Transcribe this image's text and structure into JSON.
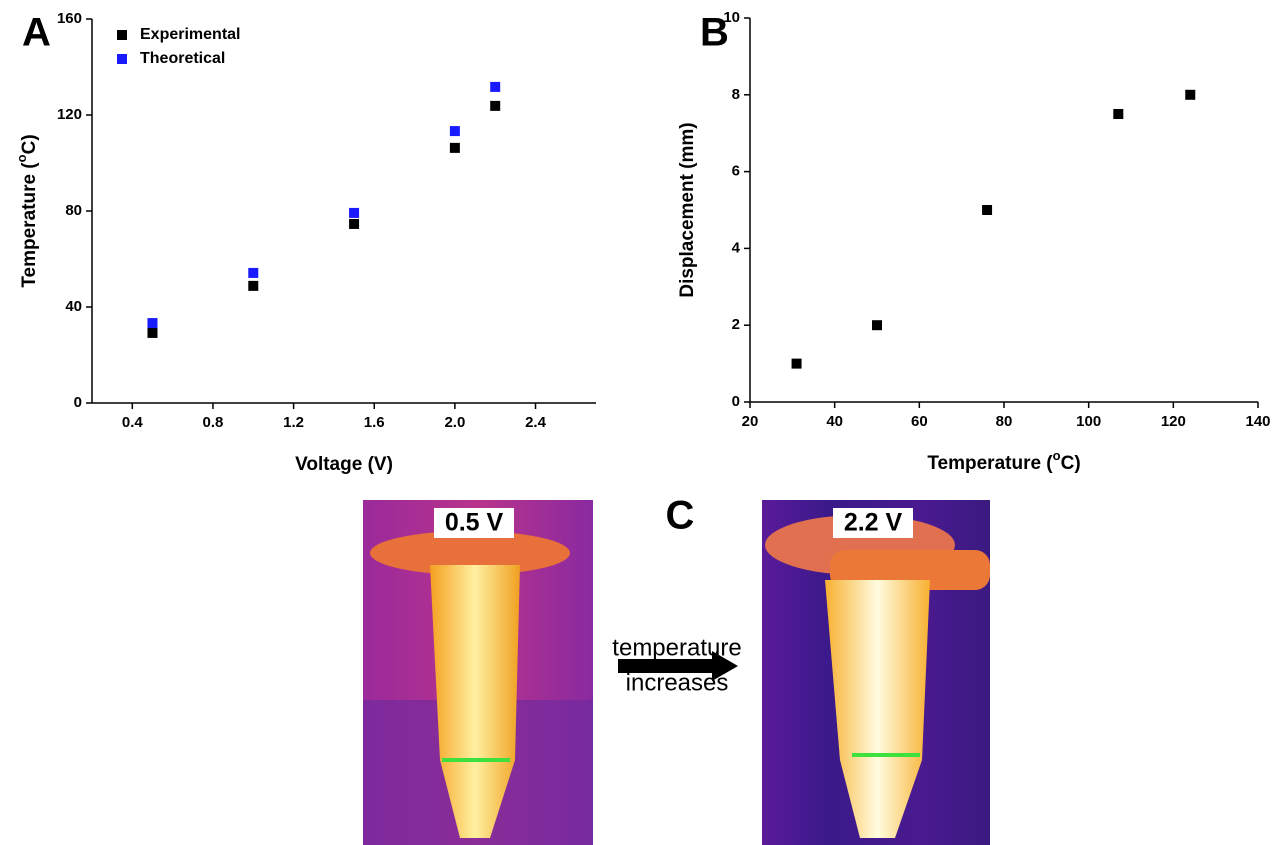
{
  "chart_data": [
    {
      "type": "scatter",
      "panel": "A",
      "xlabel": "Voltage (V)",
      "ylabel": [
        "Temperature (",
        "o",
        "C)"
      ],
      "xlim": [
        0.2,
        2.7
      ],
      "xticks": [
        0.4,
        0.8,
        1.2,
        1.6,
        {
          "value": 2,
          "label": "2.0"
        },
        2.4
      ],
      "ylim": [
        0,
        160
      ],
      "yticks": [
        0,
        40,
        80,
        120,
        160
      ],
      "legend": "upper left",
      "series": [
        {
          "name": "Experimental",
          "color": "#000000",
          "x": [
            0.5,
            1.0,
            1.5,
            2.0,
            2.2
          ],
          "values": [
            29.2,
            48.8,
            74.6,
            106.3,
            123.8
          ]
        },
        {
          "name": "Theoretical",
          "color": "#1a1aff",
          "x": [
            0.5,
            1.0,
            1.5,
            2.0,
            2.2
          ],
          "values": [
            33.3,
            54.2,
            79.2,
            113.3,
            131.7
          ]
        }
      ]
    },
    {
      "type": "scatter",
      "panel": "B",
      "xlabel": [
        "Temperature (",
        "o",
        "C)"
      ],
      "ylabel": "Displacement (mm)",
      "xlim": [
        20,
        140
      ],
      "xticks": [
        20,
        40,
        60,
        80,
        100,
        120,
        140
      ],
      "ylim": [
        0,
        10
      ],
      "yticks": [
        0,
        2,
        4,
        6,
        8,
        10
      ],
      "series": [
        {
          "color": "#000000",
          "x": [
            31,
            50,
            76,
            107,
            124
          ],
          "values": [
            1,
            2,
            5,
            7.5,
            8
          ]
        }
      ]
    }
  ],
  "panel_c": {
    "label": "C",
    "images": [
      {
        "label": "0.5 V"
      },
      {
        "label": "2.2 V"
      }
    ],
    "arrow_text": [
      "temperature",
      "increases"
    ]
  }
}
